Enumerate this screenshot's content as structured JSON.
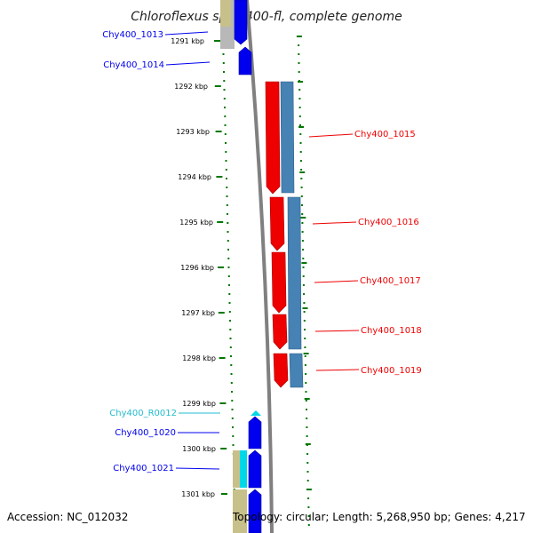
{
  "title": "Chloroflexus sp. Y-400-fl, complete genome",
  "footer": {
    "accession": "Accession: NC_012032",
    "summary": "Topology: circular; Length: 5,268,950 bp; Genes: 4,217"
  },
  "colors": {
    "forward_cds": "#0000ee",
    "reverse_cds": "#ee0000",
    "rna": "#00d8e8",
    "rna_label": "#22bbcc",
    "shadow_blue": "#4682b4",
    "khaki": "#c8c08a",
    "backbone": "#808080",
    "tick": "#007700"
  },
  "axis": {
    "unit": "kbp",
    "ticks": [
      "1291 kbp",
      "1292 kbp",
      "1293 kbp",
      "1294 kbp",
      "1295 kbp",
      "1296 kbp",
      "1297 kbp",
      "1298 kbp",
      "1299 kbp",
      "1300 kbp",
      "1301 kbp"
    ]
  },
  "genes": [
    {
      "label": "Chy400_1013",
      "strand": "forward",
      "type": "cds"
    },
    {
      "label": "Chy400_1014",
      "strand": "forward",
      "type": "cds"
    },
    {
      "label": "Chy400_1015",
      "strand": "reverse",
      "type": "cds"
    },
    {
      "label": "Chy400_1016",
      "strand": "reverse",
      "type": "cds"
    },
    {
      "label": "Chy400_1017",
      "strand": "reverse",
      "type": "cds"
    },
    {
      "label": "Chy400_1018",
      "strand": "reverse",
      "type": "cds"
    },
    {
      "label": "Chy400_1019",
      "strand": "reverse",
      "type": "cds"
    },
    {
      "label": "Chy400_R0012",
      "strand": "forward",
      "type": "rna"
    },
    {
      "label": "Chy400_1020",
      "strand": "forward",
      "type": "cds"
    },
    {
      "label": "Chy400_1021",
      "strand": "forward",
      "type": "cds"
    }
  ]
}
